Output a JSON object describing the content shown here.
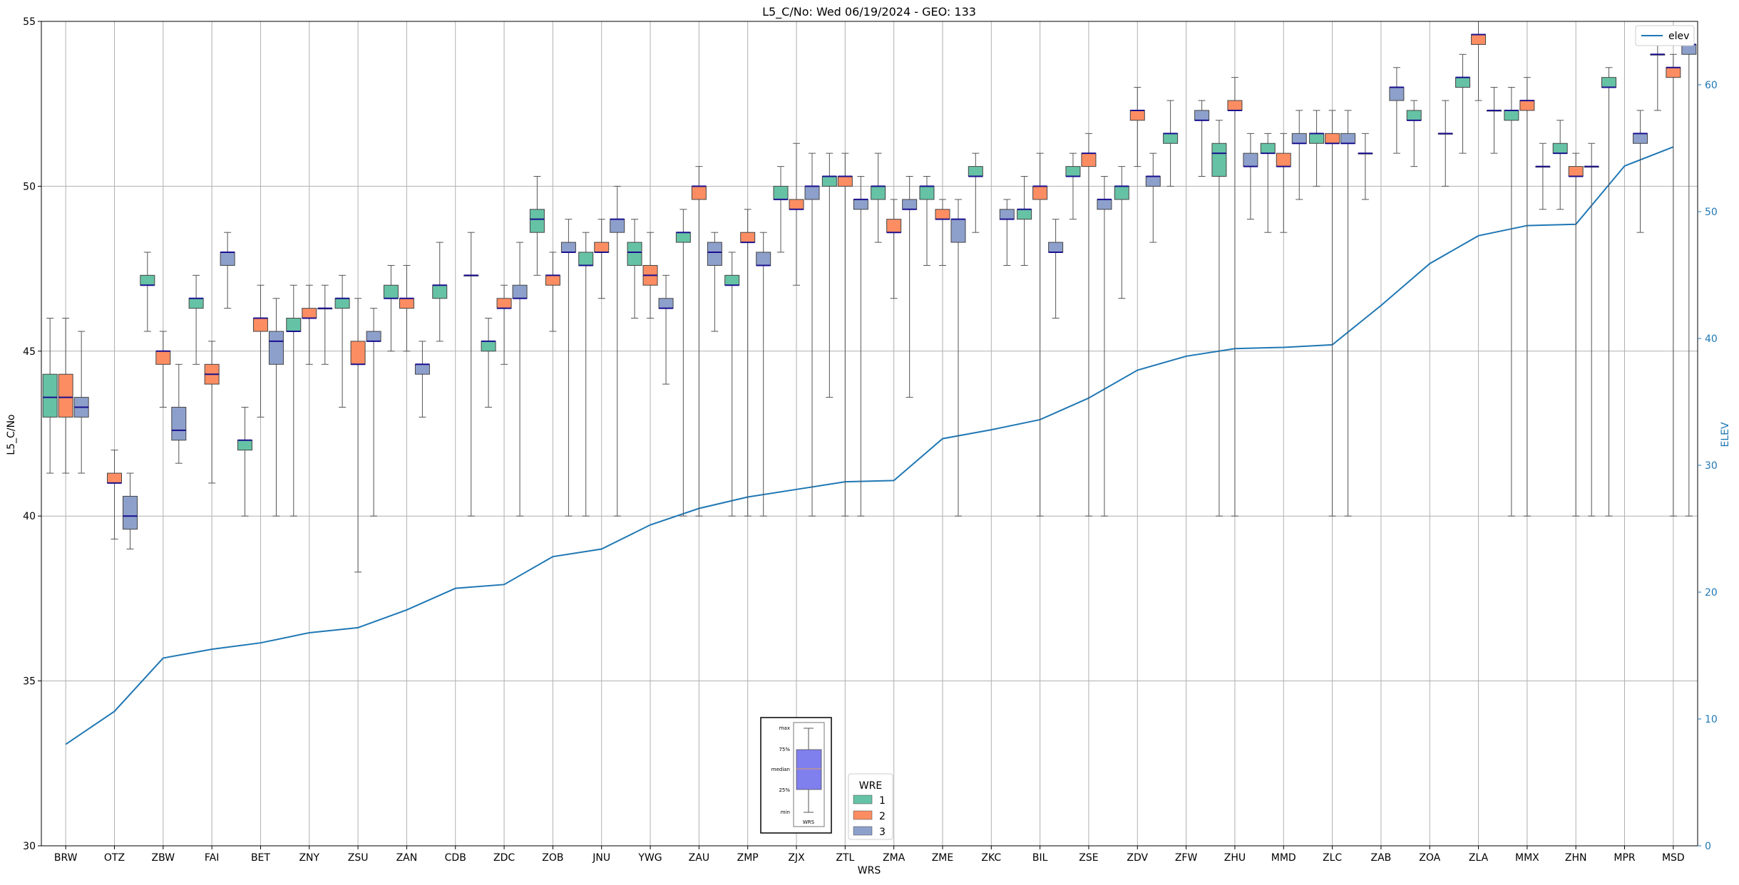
{
  "chart_data": {
    "type": "box",
    "title": "L5_C/No: Wed 06/19/2024 - GEO: 133",
    "xlabel": "WRS",
    "ylabel": "L5_C/No",
    "y2label": "ELEV",
    "ylim": [
      30,
      55
    ],
    "y2lim": [
      0,
      65
    ],
    "yticks": [
      30,
      35,
      40,
      45,
      50,
      55
    ],
    "y2ticks": [
      0,
      10,
      20,
      30,
      40,
      50,
      60
    ],
    "grid": true,
    "categories": [
      "BRW",
      "OTZ",
      "ZBW",
      "FAI",
      "BET",
      "ZNY",
      "ZSU",
      "ZAN",
      "CDB",
      "ZDC",
      "ZOB",
      "JNU",
      "YWG",
      "ZAU",
      "ZMP",
      "ZJX",
      "ZTL",
      "ZMA",
      "ZME",
      "ZKC",
      "BIL",
      "ZSE",
      "ZDV",
      "ZFW",
      "ZHU",
      "MMD",
      "ZLC",
      "ZAB",
      "ZOA",
      "ZLA",
      "MMX",
      "ZHN",
      "MPR",
      "MSD"
    ],
    "legend": {
      "title": "WRE",
      "placement": "bottom-center",
      "entries": [
        {
          "label": "1",
          "color": "#66c2a5"
        },
        {
          "label": "2",
          "color": "#fc8d62"
        },
        {
          "label": "3",
          "color": "#8da0cb"
        }
      ]
    },
    "series": [
      {
        "name": "1",
        "boxes": [
          {
            "min": 41.3,
            "q1": 43.0,
            "median": 43.6,
            "q3": 44.3,
            "max": 46.0
          },
          null,
          {
            "min": 45.6,
            "q1": 47.0,
            "median": 47.0,
            "q3": 47.3,
            "max": 48.0
          },
          {
            "min": 44.6,
            "q1": 46.3,
            "median": 46.6,
            "q3": 46.6,
            "max": 47.3
          },
          {
            "min": 40.0,
            "q1": 42.0,
            "median": 42.3,
            "q3": 42.3,
            "max": 43.3
          },
          {
            "min": 40.0,
            "q1": 45.6,
            "median": 45.6,
            "q3": 46.0,
            "max": 47.0
          },
          {
            "min": 43.3,
            "q1": 46.3,
            "median": 46.6,
            "q3": 46.6,
            "max": 47.3
          },
          {
            "min": 45.0,
            "q1": 46.6,
            "median": 46.6,
            "q3": 47.0,
            "max": 47.6
          },
          {
            "min": 45.3,
            "q1": 46.6,
            "median": 47.0,
            "q3": 47.0,
            "max": 48.3
          },
          {
            "min": 43.3,
            "q1": 45.0,
            "median": 45.3,
            "q3": 45.3,
            "max": 46.0
          },
          {
            "min": 47.3,
            "q1": 48.6,
            "median": 49.0,
            "q3": 49.3,
            "max": 50.3
          },
          {
            "min": 40.0,
            "q1": 47.6,
            "median": 47.6,
            "q3": 48.0,
            "max": 48.6
          },
          {
            "min": 46.0,
            "q1": 47.6,
            "median": 48.0,
            "q3": 48.3,
            "max": 49.0
          },
          {
            "min": 40.0,
            "q1": 48.3,
            "median": 48.6,
            "q3": 48.6,
            "max": 49.3
          },
          {
            "min": 40.0,
            "q1": 47.0,
            "median": 47.0,
            "q3": 47.3,
            "max": 48.0
          },
          {
            "min": 48.0,
            "q1": 49.6,
            "median": 49.6,
            "q3": 50.0,
            "max": 50.6
          },
          {
            "min": 43.6,
            "q1": 50.0,
            "median": 50.3,
            "q3": 50.3,
            "max": 51.0
          },
          {
            "min": 48.3,
            "q1": 49.6,
            "median": 50.0,
            "q3": 50.0,
            "max": 51.0
          },
          {
            "min": 47.6,
            "q1": 49.6,
            "median": 50.0,
            "q3": 50.0,
            "max": 50.3
          },
          {
            "min": 48.6,
            "q1": 50.3,
            "median": 50.3,
            "q3": 50.6,
            "max": 51.0
          },
          {
            "min": 47.6,
            "q1": 49.0,
            "median": 49.3,
            "q3": 49.3,
            "max": 50.3
          },
          {
            "min": 49.0,
            "q1": 50.3,
            "median": 50.3,
            "q3": 50.6,
            "max": 51.0
          },
          {
            "min": 46.6,
            "q1": 49.6,
            "median": 50.0,
            "q3": 50.0,
            "max": 50.6
          },
          {
            "min": 50.0,
            "q1": 51.3,
            "median": 51.6,
            "q3": 51.6,
            "max": 52.6
          },
          {
            "min": 40.0,
            "q1": 50.3,
            "median": 51.0,
            "q3": 51.3,
            "max": 52.0
          },
          {
            "min": 48.6,
            "q1": 51.0,
            "median": 51.0,
            "q3": 51.3,
            "max": 51.6
          },
          {
            "min": 50.0,
            "q1": 51.3,
            "median": 51.6,
            "q3": 51.6,
            "max": 52.3
          },
          {
            "min": 49.6,
            "q1": 51.0,
            "median": 51.0,
            "q3": 51.0,
            "max": 51.6
          },
          {
            "min": 50.6,
            "q1": 52.0,
            "median": 52.0,
            "q3": 52.3,
            "max": 52.6
          },
          {
            "min": 51.0,
            "q1": 53.0,
            "median": 53.3,
            "q3": 53.3,
            "max": 54.0
          },
          {
            "min": 40.0,
            "q1": 52.0,
            "median": 52.3,
            "q3": 52.3,
            "max": 53.0
          },
          {
            "min": 49.3,
            "q1": 51.0,
            "median": 51.0,
            "q3": 51.3,
            "max": 52.0
          },
          {
            "min": 40.0,
            "q1": 53.0,
            "median": 53.0,
            "q3": 53.3,
            "max": 53.6
          },
          {
            "min": 52.3,
            "q1": 54.0,
            "median": 54.0,
            "q3": 54.0,
            "max": 54.6
          }
        ]
      },
      {
        "name": "2",
        "boxes": [
          {
            "min": 41.3,
            "q1": 43.0,
            "median": 43.6,
            "q3": 44.3,
            "max": 46.0
          },
          {
            "min": 39.3,
            "q1": 41.0,
            "median": 41.0,
            "q3": 41.3,
            "max": 42.0
          },
          {
            "min": 43.3,
            "q1": 44.6,
            "median": 45.0,
            "q3": 45.0,
            "max": 45.6
          },
          {
            "min": 41.0,
            "q1": 44.0,
            "median": 44.3,
            "q3": 44.6,
            "max": 45.3
          },
          {
            "min": 43.0,
            "q1": 45.6,
            "median": 46.0,
            "q3": 46.0,
            "max": 47.0
          },
          {
            "min": 44.6,
            "q1": 46.0,
            "median": 46.0,
            "q3": 46.3,
            "max": 47.0
          },
          {
            "min": 38.3,
            "q1": 44.6,
            "median": 44.6,
            "q3": 45.3,
            "max": 46.6
          },
          {
            "min": 45.0,
            "q1": 46.3,
            "median": 46.6,
            "q3": 46.6,
            "max": 47.6
          },
          null,
          {
            "min": 44.6,
            "q1": 46.3,
            "median": 46.3,
            "q3": 46.6,
            "max": 47.0
          },
          {
            "min": 45.6,
            "q1": 47.0,
            "median": 47.3,
            "q3": 47.3,
            "max": 48.0
          },
          {
            "min": 46.6,
            "q1": 48.0,
            "median": 48.0,
            "q3": 48.3,
            "max": 49.0
          },
          {
            "min": 46.0,
            "q1": 47.0,
            "median": 47.3,
            "q3": 47.6,
            "max": 48.6
          },
          {
            "min": 40.0,
            "q1": 49.6,
            "median": 50.0,
            "q3": 50.0,
            "max": 50.6
          },
          {
            "min": 40.0,
            "q1": 48.3,
            "median": 48.3,
            "q3": 48.6,
            "max": 49.3
          },
          {
            "min": 47.0,
            "q1": 49.3,
            "median": 49.3,
            "q3": 49.6,
            "max": 51.3
          },
          {
            "min": 40.0,
            "q1": 50.0,
            "median": 50.3,
            "q3": 50.3,
            "max": 51.0
          },
          {
            "min": 46.6,
            "q1": 48.6,
            "median": 48.6,
            "q3": 49.0,
            "max": 49.6
          },
          {
            "min": 47.6,
            "q1": 49.0,
            "median": 49.0,
            "q3": 49.3,
            "max": 49.6
          },
          null,
          {
            "min": 40.0,
            "q1": 49.6,
            "median": 50.0,
            "q3": 50.0,
            "max": 51.0
          },
          {
            "min": 40.0,
            "q1": 50.6,
            "median": 51.0,
            "q3": 51.0,
            "max": 51.6
          },
          {
            "min": 50.6,
            "q1": 52.0,
            "median": 52.3,
            "q3": 52.3,
            "max": 53.0
          },
          null,
          {
            "min": 40.0,
            "q1": 52.3,
            "median": 52.3,
            "q3": 52.6,
            "max": 53.3
          },
          {
            "min": 48.6,
            "q1": 50.6,
            "median": 50.6,
            "q3": 51.0,
            "max": 51.6
          },
          {
            "min": 40.0,
            "q1": 51.3,
            "median": 51.3,
            "q3": 51.6,
            "max": 52.3
          },
          null,
          null,
          {
            "min": 52.6,
            "q1": 54.3,
            "median": 54.6,
            "q3": 54.6,
            "max": 55.0
          },
          {
            "min": 40.0,
            "q1": 52.3,
            "median": 52.6,
            "q3": 52.6,
            "max": 53.3
          },
          {
            "min": 40.0,
            "q1": 50.3,
            "median": 50.3,
            "q3": 50.6,
            "max": 51.0
          },
          null,
          {
            "min": 40.0,
            "q1": 53.3,
            "median": 53.6,
            "q3": 53.6,
            "max": 54.0
          }
        ]
      },
      {
        "name": "3",
        "boxes": [
          {
            "min": 41.3,
            "q1": 43.0,
            "median": 43.3,
            "q3": 43.6,
            "max": 45.6
          },
          {
            "min": 39.0,
            "q1": 39.6,
            "median": 40.0,
            "q3": 40.6,
            "max": 41.3
          },
          {
            "min": 41.6,
            "q1": 42.3,
            "median": 42.6,
            "q3": 43.3,
            "max": 44.6
          },
          {
            "min": 46.3,
            "q1": 47.6,
            "median": 48.0,
            "q3": 48.0,
            "max": 48.6
          },
          {
            "min": 40.0,
            "q1": 44.6,
            "median": 45.3,
            "q3": 45.6,
            "max": 46.6
          },
          {
            "min": 44.6,
            "q1": 46.3,
            "median": 46.3,
            "q3": 46.3,
            "max": 47.0
          },
          {
            "min": 40.0,
            "q1": 45.3,
            "median": 45.3,
            "q3": 45.6,
            "max": 46.3
          },
          {
            "min": 43.0,
            "q1": 44.3,
            "median": 44.6,
            "q3": 44.6,
            "max": 45.3
          },
          {
            "min": 40.0,
            "q1": 47.3,
            "median": 47.3,
            "q3": 47.3,
            "max": 48.6
          },
          {
            "min": 40.0,
            "q1": 46.6,
            "median": 46.6,
            "q3": 47.0,
            "max": 48.3
          },
          {
            "min": 40.0,
            "q1": 48.0,
            "median": 48.0,
            "q3": 48.3,
            "max": 49.0
          },
          {
            "min": 40.0,
            "q1": 48.6,
            "median": 49.0,
            "q3": 49.0,
            "max": 50.0
          },
          {
            "min": 44.0,
            "q1": 46.3,
            "median": 46.3,
            "q3": 46.6,
            "max": 47.3
          },
          {
            "min": 45.6,
            "q1": 47.6,
            "median": 48.0,
            "q3": 48.3,
            "max": 48.6
          },
          {
            "min": 40.0,
            "q1": 47.6,
            "median": 47.6,
            "q3": 48.0,
            "max": 48.6
          },
          {
            "min": 40.0,
            "q1": 49.6,
            "median": 50.0,
            "q3": 50.0,
            "max": 51.0
          },
          {
            "min": 40.0,
            "q1": 49.3,
            "median": 49.6,
            "q3": 49.6,
            "max": 50.3
          },
          {
            "min": 43.6,
            "q1": 49.3,
            "median": 49.3,
            "q3": 49.6,
            "max": 50.3
          },
          {
            "min": 40.0,
            "q1": 48.3,
            "median": 49.0,
            "q3": 49.0,
            "max": 49.6
          },
          {
            "min": 47.6,
            "q1": 49.0,
            "median": 49.0,
            "q3": 49.3,
            "max": 49.6
          },
          {
            "min": 46.0,
            "q1": 48.0,
            "median": 48.0,
            "q3": 48.3,
            "max": 49.0
          },
          {
            "min": 40.0,
            "q1": 49.3,
            "median": 49.6,
            "q3": 49.6,
            "max": 50.3
          },
          {
            "min": 48.3,
            "q1": 50.0,
            "median": 50.3,
            "q3": 50.3,
            "max": 51.0
          },
          {
            "min": 50.3,
            "q1": 52.0,
            "median": 52.0,
            "q3": 52.3,
            "max": 52.6
          },
          {
            "min": 49.0,
            "q1": 50.6,
            "median": 50.6,
            "q3": 51.0,
            "max": 51.6
          },
          {
            "min": 49.6,
            "q1": 51.3,
            "median": 51.3,
            "q3": 51.6,
            "max": 52.3
          },
          {
            "min": 40.0,
            "q1": 51.3,
            "median": 51.3,
            "q3": 51.6,
            "max": 52.3
          },
          {
            "min": 51.0,
            "q1": 52.6,
            "median": 53.0,
            "q3": 53.0,
            "max": 53.6
          },
          {
            "min": 50.0,
            "q1": 51.6,
            "median": 51.6,
            "q3": 51.6,
            "max": 52.6
          },
          {
            "min": 51.0,
            "q1": 52.3,
            "median": 52.3,
            "q3": 52.3,
            "max": 53.0
          },
          {
            "min": 49.3,
            "q1": 50.6,
            "median": 50.6,
            "q3": 50.6,
            "max": 51.3
          },
          {
            "min": 40.0,
            "q1": 50.6,
            "median": 50.6,
            "q3": 50.6,
            "max": 51.3
          },
          {
            "min": 48.6,
            "q1": 51.3,
            "median": 51.6,
            "q3": 51.6,
            "max": 52.3
          },
          {
            "min": 40.0,
            "q1": 54.0,
            "median": 54.3,
            "q3": 54.3,
            "max": 54.6
          }
        ]
      }
    ],
    "elev_line": {
      "name": "elev",
      "color": "#1f77b4",
      "axis": "right",
      "values": [
        8.0,
        10.6,
        14.8,
        15.5,
        16.0,
        16.8,
        17.2,
        18.6,
        20.3,
        20.6,
        22.8,
        23.4,
        25.3,
        26.6,
        27.5,
        28.1,
        28.7,
        28.8,
        32.1,
        32.8,
        33.6,
        35.3,
        37.5,
        38.6,
        39.2,
        39.3,
        39.5,
        42.6,
        45.9,
        48.1,
        48.9,
        49.0,
        53.6,
        55.1
      ]
    },
    "inset_legend": {
      "placement": "bottom-center",
      "labels": [
        "max",
        "75%",
        "median",
        "25%",
        "min"
      ],
      "caption": "WRS",
      "box_color": "#7f7fee"
    }
  }
}
